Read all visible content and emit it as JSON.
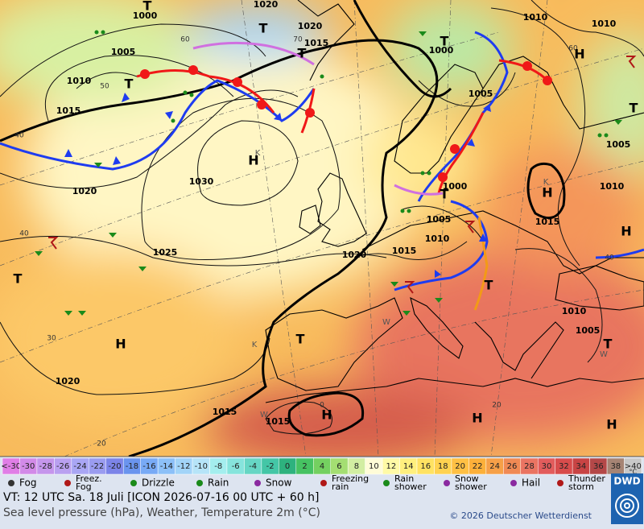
{
  "map": {
    "pressure_labels": [
      "1000",
      "1005",
      "1010",
      "1015",
      "1020",
      "1030",
      "1025",
      "1020",
      "1015",
      "1010",
      "1005",
      "1000",
      "1020",
      "1020",
      "1015",
      "1000",
      "1005",
      "1010",
      "1010",
      "1005",
      "1010",
      "1015",
      "1010",
      "1005",
      "1020",
      "1015",
      "1015"
    ],
    "grid_labels": [
      "60",
      "50",
      "40",
      "40",
      "30",
      "20",
      "20",
      "40",
      "60",
      "70",
      "0"
    ],
    "systems": [
      "H",
      "H",
      "H",
      "H",
      "H",
      "H",
      "H",
      "H",
      "T",
      "T",
      "T",
      "T",
      "T",
      "T",
      "T",
      "T",
      "T",
      "T",
      "T"
    ],
    "minor_labels": [
      "K",
      "K",
      "K",
      "W",
      "W",
      "W"
    ]
  },
  "temperature_scale": {
    "unit": "°C",
    "entries": [
      {
        "label": "<-30",
        "color": "#e07ee6"
      },
      {
        "label": "-30",
        "color": "#d28ae8"
      },
      {
        "label": "-28",
        "color": "#c596ec"
      },
      {
        "label": "-26",
        "color": "#b9a0f0"
      },
      {
        "label": "-24",
        "color": "#a9a6f4"
      },
      {
        "label": "-22",
        "color": "#9a9cf0"
      },
      {
        "label": "-20",
        "color": "#7c84e8"
      },
      {
        "label": "-18",
        "color": "#6a94ee"
      },
      {
        "label": "-16",
        "color": "#78aaf6"
      },
      {
        "label": "-14",
        "color": "#8cc0f8"
      },
      {
        "label": "-12",
        "color": "#a2d4f8"
      },
      {
        "label": "-10",
        "color": "#b6e4f8"
      },
      {
        "label": "-8",
        "color": "#a4eeee"
      },
      {
        "label": "-6",
        "color": "#86e4dc"
      },
      {
        "label": "-4",
        "color": "#66d6c4"
      },
      {
        "label": "-2",
        "color": "#44c6a6"
      },
      {
        "label": "0",
        "color": "#2eb27e"
      },
      {
        "label": "2",
        "color": "#46c262"
      },
      {
        "label": "4",
        "color": "#74d060"
      },
      {
        "label": "6",
        "color": "#a4de72"
      },
      {
        "label": "8",
        "color": "#d2eea2"
      },
      {
        "label": "10",
        "color": "#fffcd8"
      },
      {
        "label": "12",
        "color": "#fffaa6"
      },
      {
        "label": "14",
        "color": "#fff07e"
      },
      {
        "label": "16",
        "color": "#ffe262"
      },
      {
        "label": "18",
        "color": "#ffd250"
      },
      {
        "label": "20",
        "color": "#ffc044"
      },
      {
        "label": "22",
        "color": "#fcb03a"
      },
      {
        "label": "24",
        "color": "#f6a048"
      },
      {
        "label": "26",
        "color": "#f08a54"
      },
      {
        "label": "28",
        "color": "#ea7462"
      },
      {
        "label": "30",
        "color": "#e25c5c"
      },
      {
        "label": "32",
        "color": "#d84c4c"
      },
      {
        "label": "34",
        "color": "#c84444"
      },
      {
        "label": "36",
        "color": "#b44848"
      },
      {
        "label": "38",
        "color": "#a68474"
      },
      {
        "label": ">40",
        "color": "#c8c8c8"
      }
    ]
  },
  "weather_legend": [
    {
      "lines": [
        "Fog"
      ]
    },
    {
      "lines": [
        "Freez.",
        "Fog"
      ]
    },
    {
      "lines": [
        "Drizzle"
      ]
    },
    {
      "lines": [
        "Rain"
      ]
    },
    {
      "lines": [
        "Snow"
      ]
    },
    {
      "lines": [
        "Freezing",
        "rain"
      ]
    },
    {
      "lines": [
        "Rain",
        "shower"
      ]
    },
    {
      "lines": [
        "Snow",
        "shower"
      ]
    },
    {
      "lines": [
        "Hail"
      ]
    },
    {
      "lines": [
        "Thunder",
        "storm"
      ]
    }
  ],
  "footer": {
    "valid_time": "VT: 12 UTC Sa.  18 Juli [ICON 2026-07-16  00 UTC + 60 h]",
    "description": "Sea level pressure (hPa), Weather, Temperature 2m (°C)",
    "copyright": "© 2026 Deutscher Wetterdienst",
    "logo": "DWD"
  }
}
